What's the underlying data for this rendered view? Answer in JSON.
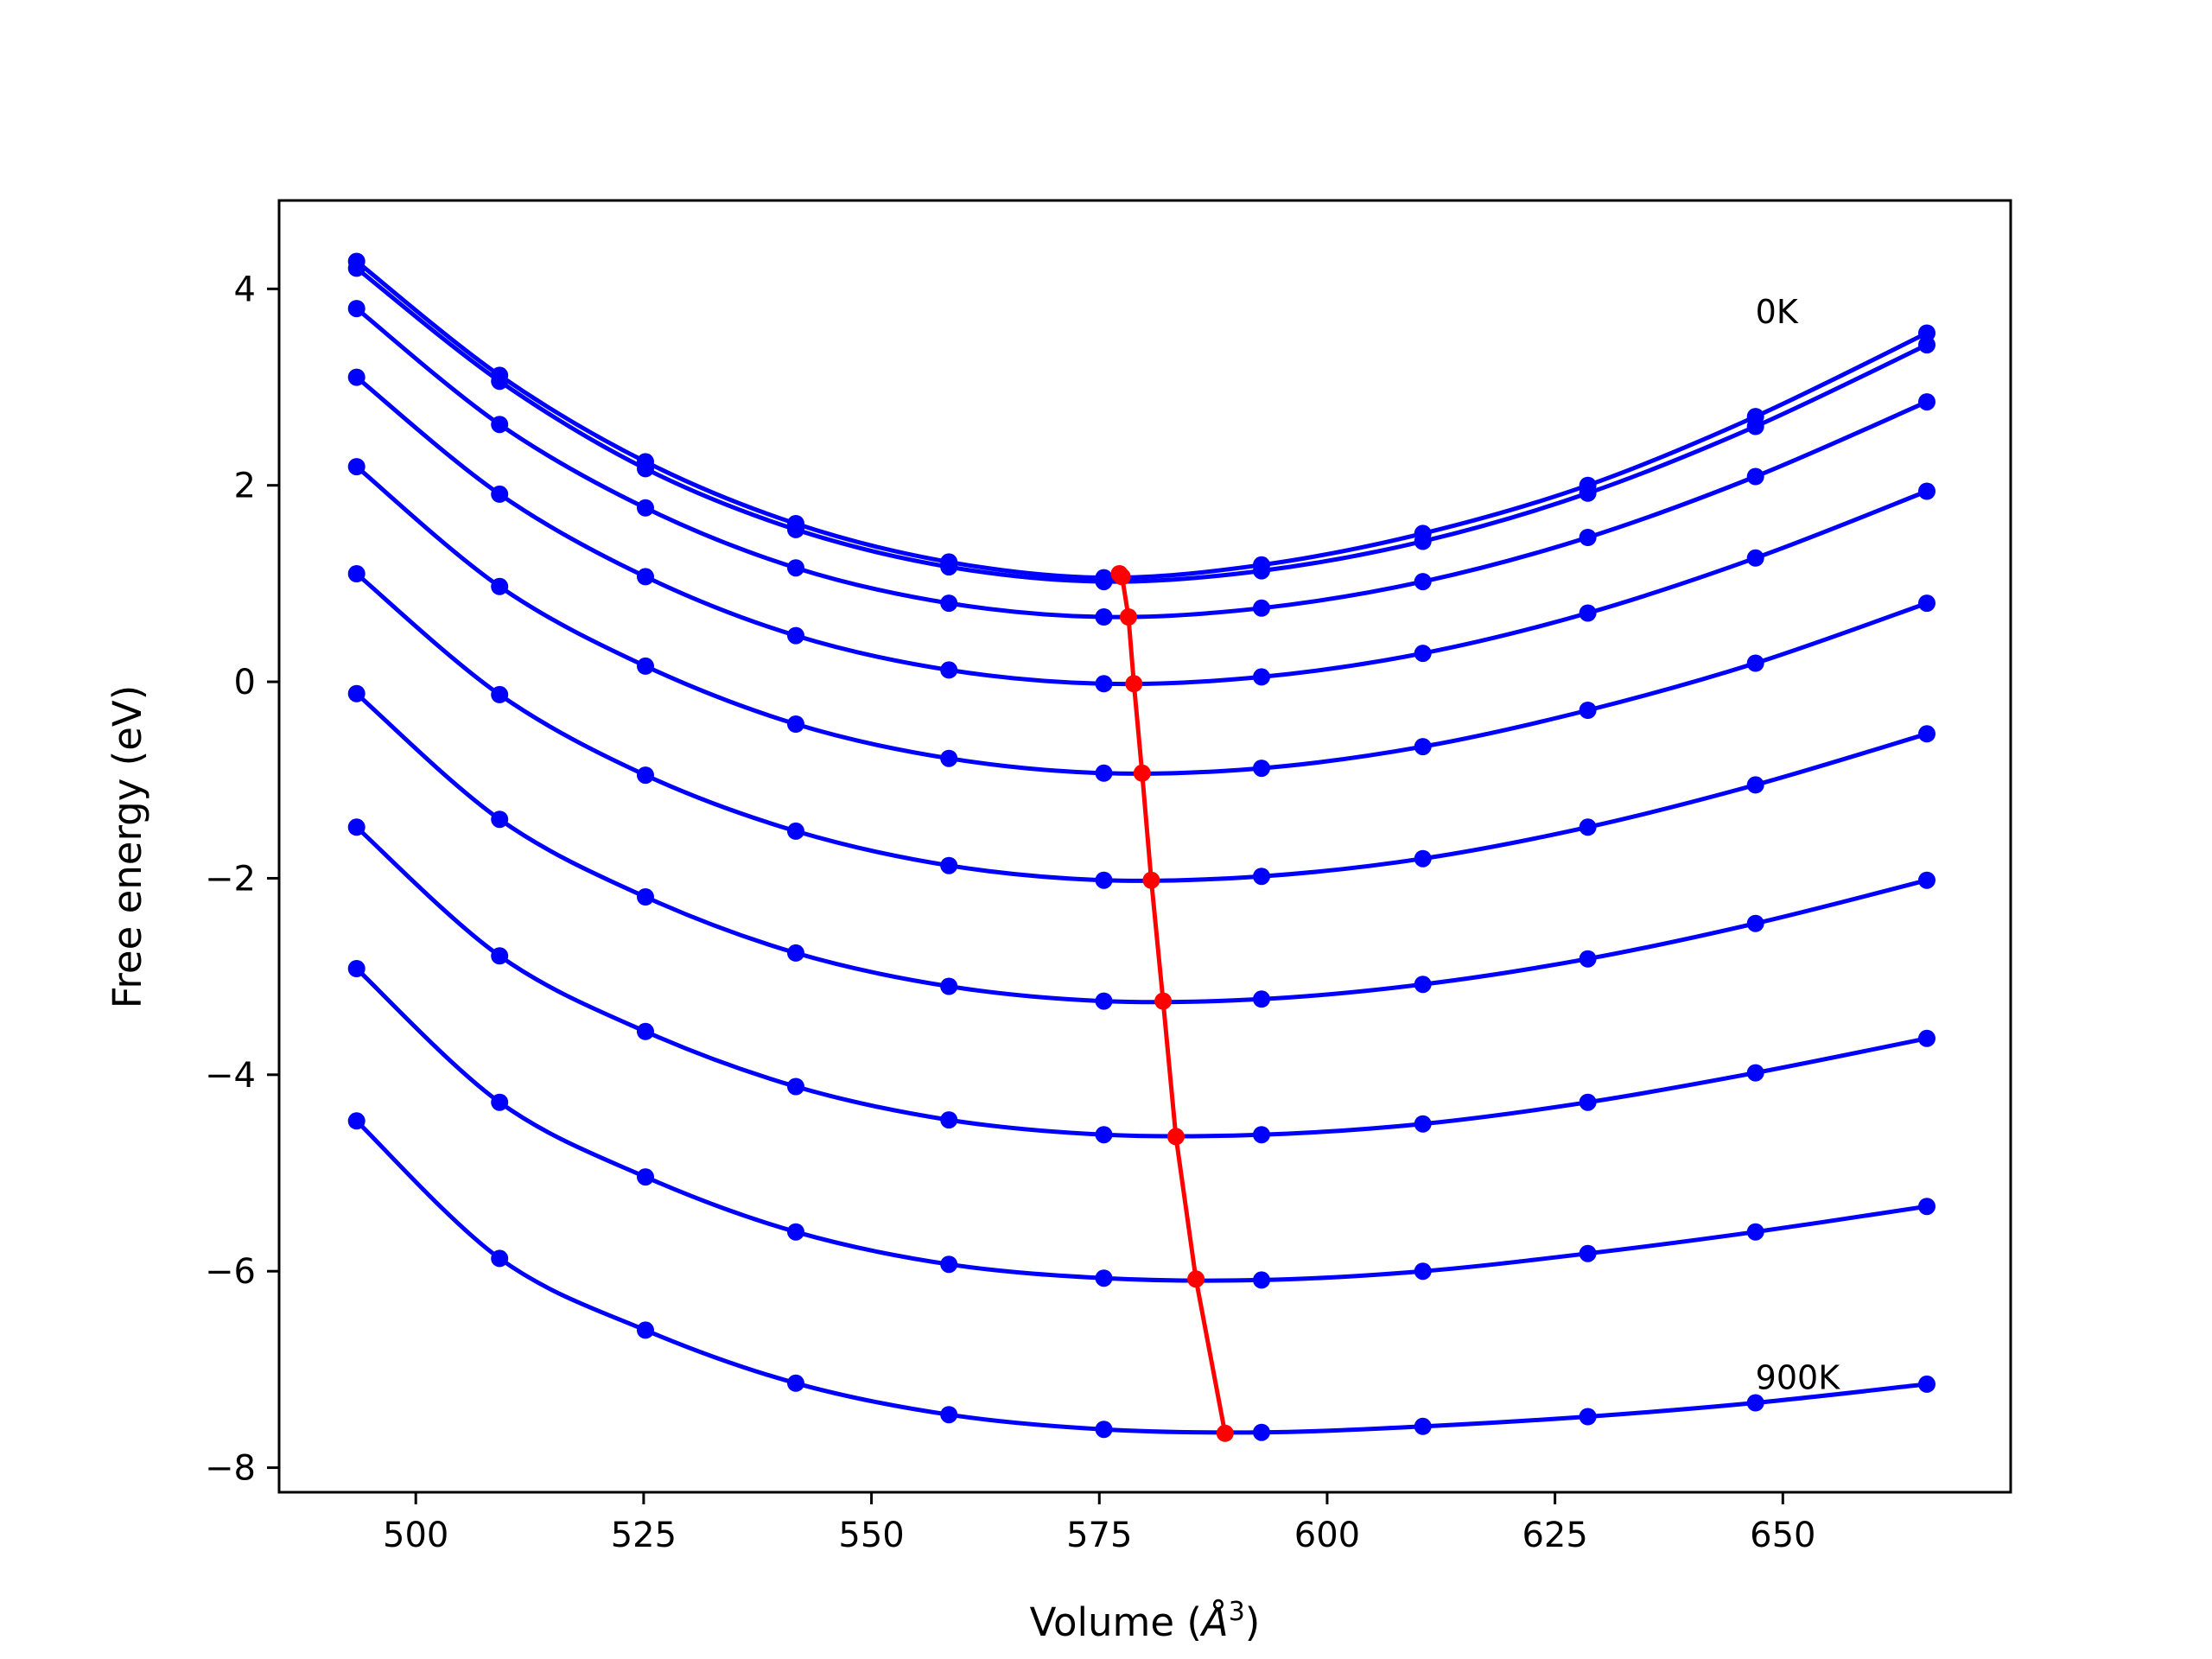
{
  "chart_data": {
    "type": "line",
    "title": "",
    "xlabel_prefix": "Volume (",
    "xlabel_symbol": "Å",
    "xlabel_exp": "3",
    "xlabel_suffix": ")",
    "ylabel": "Free energy (eV)",
    "xlim": [
      485,
      675
    ],
    "ylim": [
      -8.25,
      4.9
    ],
    "xticks": [
      500,
      525,
      550,
      575,
      600,
      625,
      650
    ],
    "yticks": [
      -8,
      -6,
      -4,
      -2,
      0,
      2,
      4
    ],
    "ytick_labels": [
      "−8",
      "−6",
      "−4",
      "−2",
      "0",
      "2",
      "4"
    ],
    "grid": false,
    "legend": "none",
    "colors": {
      "curves": "#0000ff",
      "minima": "#ff0000",
      "frame": "#000000"
    },
    "annotations": [
      {
        "text": "0K",
        "x": 647,
        "y": 3.65
      },
      {
        "text": "900K",
        "x": 647,
        "y": -7.2
      }
    ],
    "x": [
      493.5,
      509.2,
      525.2,
      541.7,
      558.5,
      575.5,
      592.8,
      610.5,
      628.6,
      647.0,
      665.8
    ],
    "series": [
      {
        "values": [
          4.28,
          3.12,
          2.24,
          1.61,
          1.22,
          1.06,
          1.19,
          1.51,
          2.0,
          2.7,
          3.55
        ]
      },
      {
        "values": [
          4.21,
          3.06,
          2.17,
          1.55,
          1.17,
          1.02,
          1.13,
          1.43,
          1.92,
          2.6,
          3.43
        ]
      },
      {
        "values": [
          3.8,
          2.62,
          1.77,
          1.16,
          0.8,
          0.66,
          0.75,
          1.02,
          1.47,
          2.09,
          2.85
        ]
      },
      {
        "values": [
          3.1,
          1.91,
          1.07,
          0.47,
          0.12,
          -0.02,
          0.05,
          0.29,
          0.7,
          1.26,
          1.94
        ]
      },
      {
        "values": [
          2.19,
          0.97,
          0.16,
          -0.43,
          -0.78,
          -0.93,
          -0.88,
          -0.66,
          -0.29,
          0.19,
          0.8
        ]
      },
      {
        "values": [
          1.1,
          -0.13,
          -0.95,
          -1.52,
          -1.87,
          -2.02,
          -1.98,
          -1.8,
          -1.48,
          -1.05,
          -0.53
        ]
      },
      {
        "values": [
          -0.12,
          -1.4,
          -2.19,
          -2.76,
          -3.1,
          -3.25,
          -3.23,
          -3.08,
          -2.82,
          -2.46,
          -2.02
        ]
      },
      {
        "values": [
          -1.48,
          -2.79,
          -3.56,
          -4.12,
          -4.46,
          -4.61,
          -4.61,
          -4.5,
          -4.28,
          -3.98,
          -3.63
        ]
      },
      {
        "values": [
          -2.92,
          -4.28,
          -5.04,
          -5.6,
          -5.93,
          -6.07,
          -6.09,
          -6.0,
          -5.82,
          -5.6,
          -5.34
        ]
      },
      {
        "values": [
          -4.47,
          -5.87,
          -6.6,
          -7.14,
          -7.46,
          -7.61,
          -7.64,
          -7.58,
          -7.48,
          -7.34,
          -7.15
        ]
      }
    ],
    "minima": {
      "x": [
        577.2,
        577.5,
        578.2,
        578.8,
        579.7,
        580.7,
        582.0,
        583.4,
        585.6,
        588.8
      ],
      "y": [
        1.1,
        1.07,
        0.66,
        -0.02,
        -0.93,
        -2.02,
        -3.25,
        -4.63,
        -6.08,
        -7.65
      ]
    }
  }
}
